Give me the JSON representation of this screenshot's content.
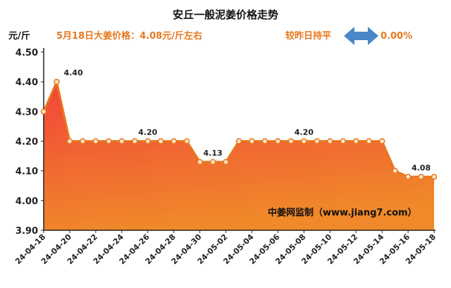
{
  "header": {
    "title": "安丘一般泥姜价格走势",
    "unit": "元/斤",
    "summary": "5月18日大姜价格：4.08元/斤左右",
    "compare_label": "较昨日持平",
    "compare_value": "0.00%",
    "arrow_icon": "double-arrow-icon",
    "arrow_color": "#4a86c8"
  },
  "source": "中姜网监制（www.jiang7.com）",
  "colors": {
    "line": "#e8781e",
    "fill_top": "#f2433a",
    "fill_bottom": "#f0892a",
    "axis": "#222222"
  },
  "chart_data": {
    "type": "area",
    "title": "安丘一般泥姜价格走势",
    "ylabel": "元/斤",
    "xlabel": "",
    "ylim": [
      3.9,
      4.5
    ],
    "yticks": [
      "3.90",
      "4.00",
      "4.10",
      "4.20",
      "4.30",
      "4.40",
      "4.50"
    ],
    "grid": false,
    "x": [
      "24-04-18",
      "24-04-19",
      "24-04-20",
      "24-04-21",
      "24-04-22",
      "24-04-23",
      "24-04-24",
      "24-04-25",
      "24-04-26",
      "24-04-27",
      "24-04-28",
      "24-04-29",
      "24-04-30",
      "24-05-01",
      "24-05-02",
      "24-05-03",
      "24-05-04",
      "24-05-05",
      "24-05-06",
      "24-05-07",
      "24-05-08",
      "24-05-09",
      "24-05-10",
      "24-05-11",
      "24-05-12",
      "24-05-13",
      "24-05-14",
      "24-05-15",
      "24-05-16",
      "24-05-17",
      "24-05-18"
    ],
    "xtick_labels": [
      "24-04-18",
      "24-04-20",
      "24-04-22",
      "24-04-24",
      "24-04-26",
      "24-04-28",
      "24-04-30",
      "24-05-02",
      "24-05-04",
      "24-05-06",
      "24-05-08",
      "24-05-10",
      "24-05-12",
      "24-05-14",
      "24-05-16",
      "24-05-18"
    ],
    "values": [
      4.3,
      4.4,
      4.2,
      4.2,
      4.2,
      4.2,
      4.2,
      4.2,
      4.2,
      4.2,
      4.2,
      4.2,
      4.13,
      4.13,
      4.13,
      4.2,
      4.2,
      4.2,
      4.2,
      4.2,
      4.2,
      4.2,
      4.2,
      4.2,
      4.2,
      4.2,
      4.2,
      4.1,
      4.08,
      4.08,
      4.08
    ],
    "data_labels": [
      {
        "index": 1,
        "text": "4.40"
      },
      {
        "index": 8,
        "text": "4.20"
      },
      {
        "index": 13,
        "text": "4.13"
      },
      {
        "index": 20,
        "text": "4.20"
      },
      {
        "index": 29,
        "text": "4.08"
      }
    ]
  }
}
